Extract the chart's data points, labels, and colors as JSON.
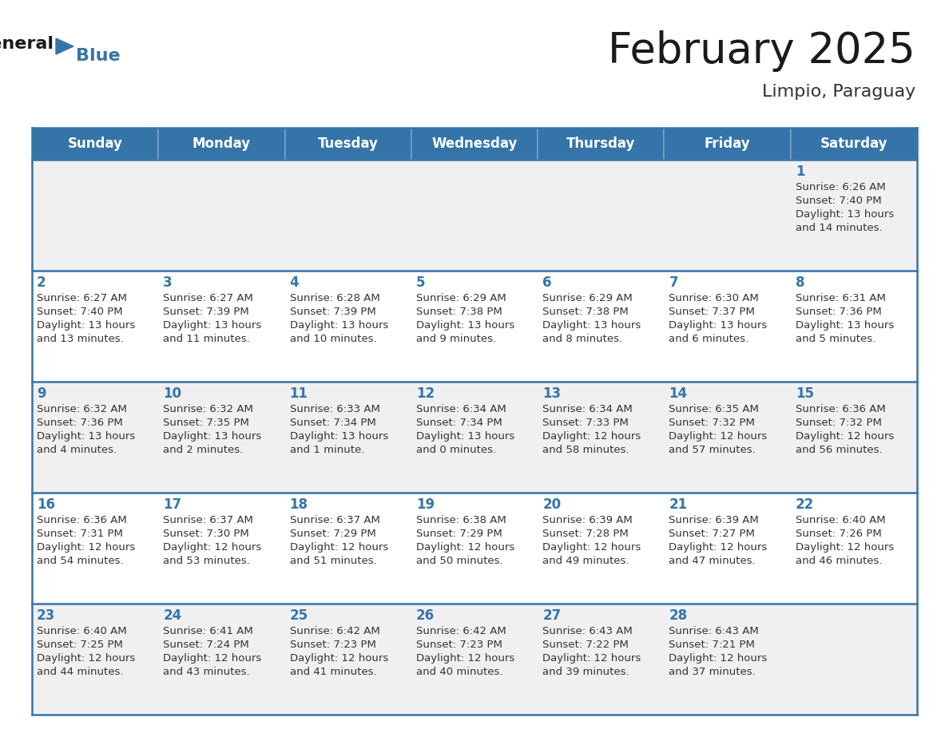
{
  "title": "February 2025",
  "subtitle": "Limpio, Paraguay",
  "header_bg_color": "#3574a8",
  "header_text_color": "#ffffff",
  "day_names": [
    "Sunday",
    "Monday",
    "Tuesday",
    "Wednesday",
    "Thursday",
    "Friday",
    "Saturday"
  ],
  "row_bg_colors": [
    "#f0f0f0",
    "#ffffff"
  ],
  "border_color": "#3574a8",
  "day_number_color": "#3574a8",
  "info_text_color": "#333333",
  "title_color": "#1a1a1a",
  "subtitle_color": "#333333",
  "cells": [
    [
      null,
      null,
      null,
      null,
      null,
      null,
      {
        "day": 1,
        "sunrise": "6:26 AM",
        "sunset": "7:40 PM",
        "daylight": "13 hours",
        "daylight2": "and 14 minutes."
      }
    ],
    [
      {
        "day": 2,
        "sunrise": "6:27 AM",
        "sunset": "7:40 PM",
        "daylight": "13 hours",
        "daylight2": "and 13 minutes."
      },
      {
        "day": 3,
        "sunrise": "6:27 AM",
        "sunset": "7:39 PM",
        "daylight": "13 hours",
        "daylight2": "and 11 minutes."
      },
      {
        "day": 4,
        "sunrise": "6:28 AM",
        "sunset": "7:39 PM",
        "daylight": "13 hours",
        "daylight2": "and 10 minutes."
      },
      {
        "day": 5,
        "sunrise": "6:29 AM",
        "sunset": "7:38 PM",
        "daylight": "13 hours",
        "daylight2": "and 9 minutes."
      },
      {
        "day": 6,
        "sunrise": "6:29 AM",
        "sunset": "7:38 PM",
        "daylight": "13 hours",
        "daylight2": "and 8 minutes."
      },
      {
        "day": 7,
        "sunrise": "6:30 AM",
        "sunset": "7:37 PM",
        "daylight": "13 hours",
        "daylight2": "and 6 minutes."
      },
      {
        "day": 8,
        "sunrise": "6:31 AM",
        "sunset": "7:36 PM",
        "daylight": "13 hours",
        "daylight2": "and 5 minutes."
      }
    ],
    [
      {
        "day": 9,
        "sunrise": "6:32 AM",
        "sunset": "7:36 PM",
        "daylight": "13 hours",
        "daylight2": "and 4 minutes."
      },
      {
        "day": 10,
        "sunrise": "6:32 AM",
        "sunset": "7:35 PM",
        "daylight": "13 hours",
        "daylight2": "and 2 minutes."
      },
      {
        "day": 11,
        "sunrise": "6:33 AM",
        "sunset": "7:34 PM",
        "daylight": "13 hours",
        "daylight2": "and 1 minute."
      },
      {
        "day": 12,
        "sunrise": "6:34 AM",
        "sunset": "7:34 PM",
        "daylight": "13 hours",
        "daylight2": "and 0 minutes."
      },
      {
        "day": 13,
        "sunrise": "6:34 AM",
        "sunset": "7:33 PM",
        "daylight": "12 hours",
        "daylight2": "and 58 minutes."
      },
      {
        "day": 14,
        "sunrise": "6:35 AM",
        "sunset": "7:32 PM",
        "daylight": "12 hours",
        "daylight2": "and 57 minutes."
      },
      {
        "day": 15,
        "sunrise": "6:36 AM",
        "sunset": "7:32 PM",
        "daylight": "12 hours",
        "daylight2": "and 56 minutes."
      }
    ],
    [
      {
        "day": 16,
        "sunrise": "6:36 AM",
        "sunset": "7:31 PM",
        "daylight": "12 hours",
        "daylight2": "and 54 minutes."
      },
      {
        "day": 17,
        "sunrise": "6:37 AM",
        "sunset": "7:30 PM",
        "daylight": "12 hours",
        "daylight2": "and 53 minutes."
      },
      {
        "day": 18,
        "sunrise": "6:37 AM",
        "sunset": "7:29 PM",
        "daylight": "12 hours",
        "daylight2": "and 51 minutes."
      },
      {
        "day": 19,
        "sunrise": "6:38 AM",
        "sunset": "7:29 PM",
        "daylight": "12 hours",
        "daylight2": "and 50 minutes."
      },
      {
        "day": 20,
        "sunrise": "6:39 AM",
        "sunset": "7:28 PM",
        "daylight": "12 hours",
        "daylight2": "and 49 minutes."
      },
      {
        "day": 21,
        "sunrise": "6:39 AM",
        "sunset": "7:27 PM",
        "daylight": "12 hours",
        "daylight2": "and 47 minutes."
      },
      {
        "day": 22,
        "sunrise": "6:40 AM",
        "sunset": "7:26 PM",
        "daylight": "12 hours",
        "daylight2": "and 46 minutes."
      }
    ],
    [
      {
        "day": 23,
        "sunrise": "6:40 AM",
        "sunset": "7:25 PM",
        "daylight": "12 hours",
        "daylight2": "and 44 minutes."
      },
      {
        "day": 24,
        "sunrise": "6:41 AM",
        "sunset": "7:24 PM",
        "daylight": "12 hours",
        "daylight2": "and 43 minutes."
      },
      {
        "day": 25,
        "sunrise": "6:42 AM",
        "sunset": "7:23 PM",
        "daylight": "12 hours",
        "daylight2": "and 41 minutes."
      },
      {
        "day": 26,
        "sunrise": "6:42 AM",
        "sunset": "7:23 PM",
        "daylight": "12 hours",
        "daylight2": "and 40 minutes."
      },
      {
        "day": 27,
        "sunrise": "6:43 AM",
        "sunset": "7:22 PM",
        "daylight": "12 hours",
        "daylight2": "and 39 minutes."
      },
      {
        "day": 28,
        "sunrise": "6:43 AM",
        "sunset": "7:21 PM",
        "daylight": "12 hours",
        "daylight2": "and 37 minutes."
      },
      null
    ]
  ],
  "logo_general_color": "#1a1a1a",
  "logo_blue_color": "#3574a8",
  "logo_triangle_color": "#3574a8"
}
